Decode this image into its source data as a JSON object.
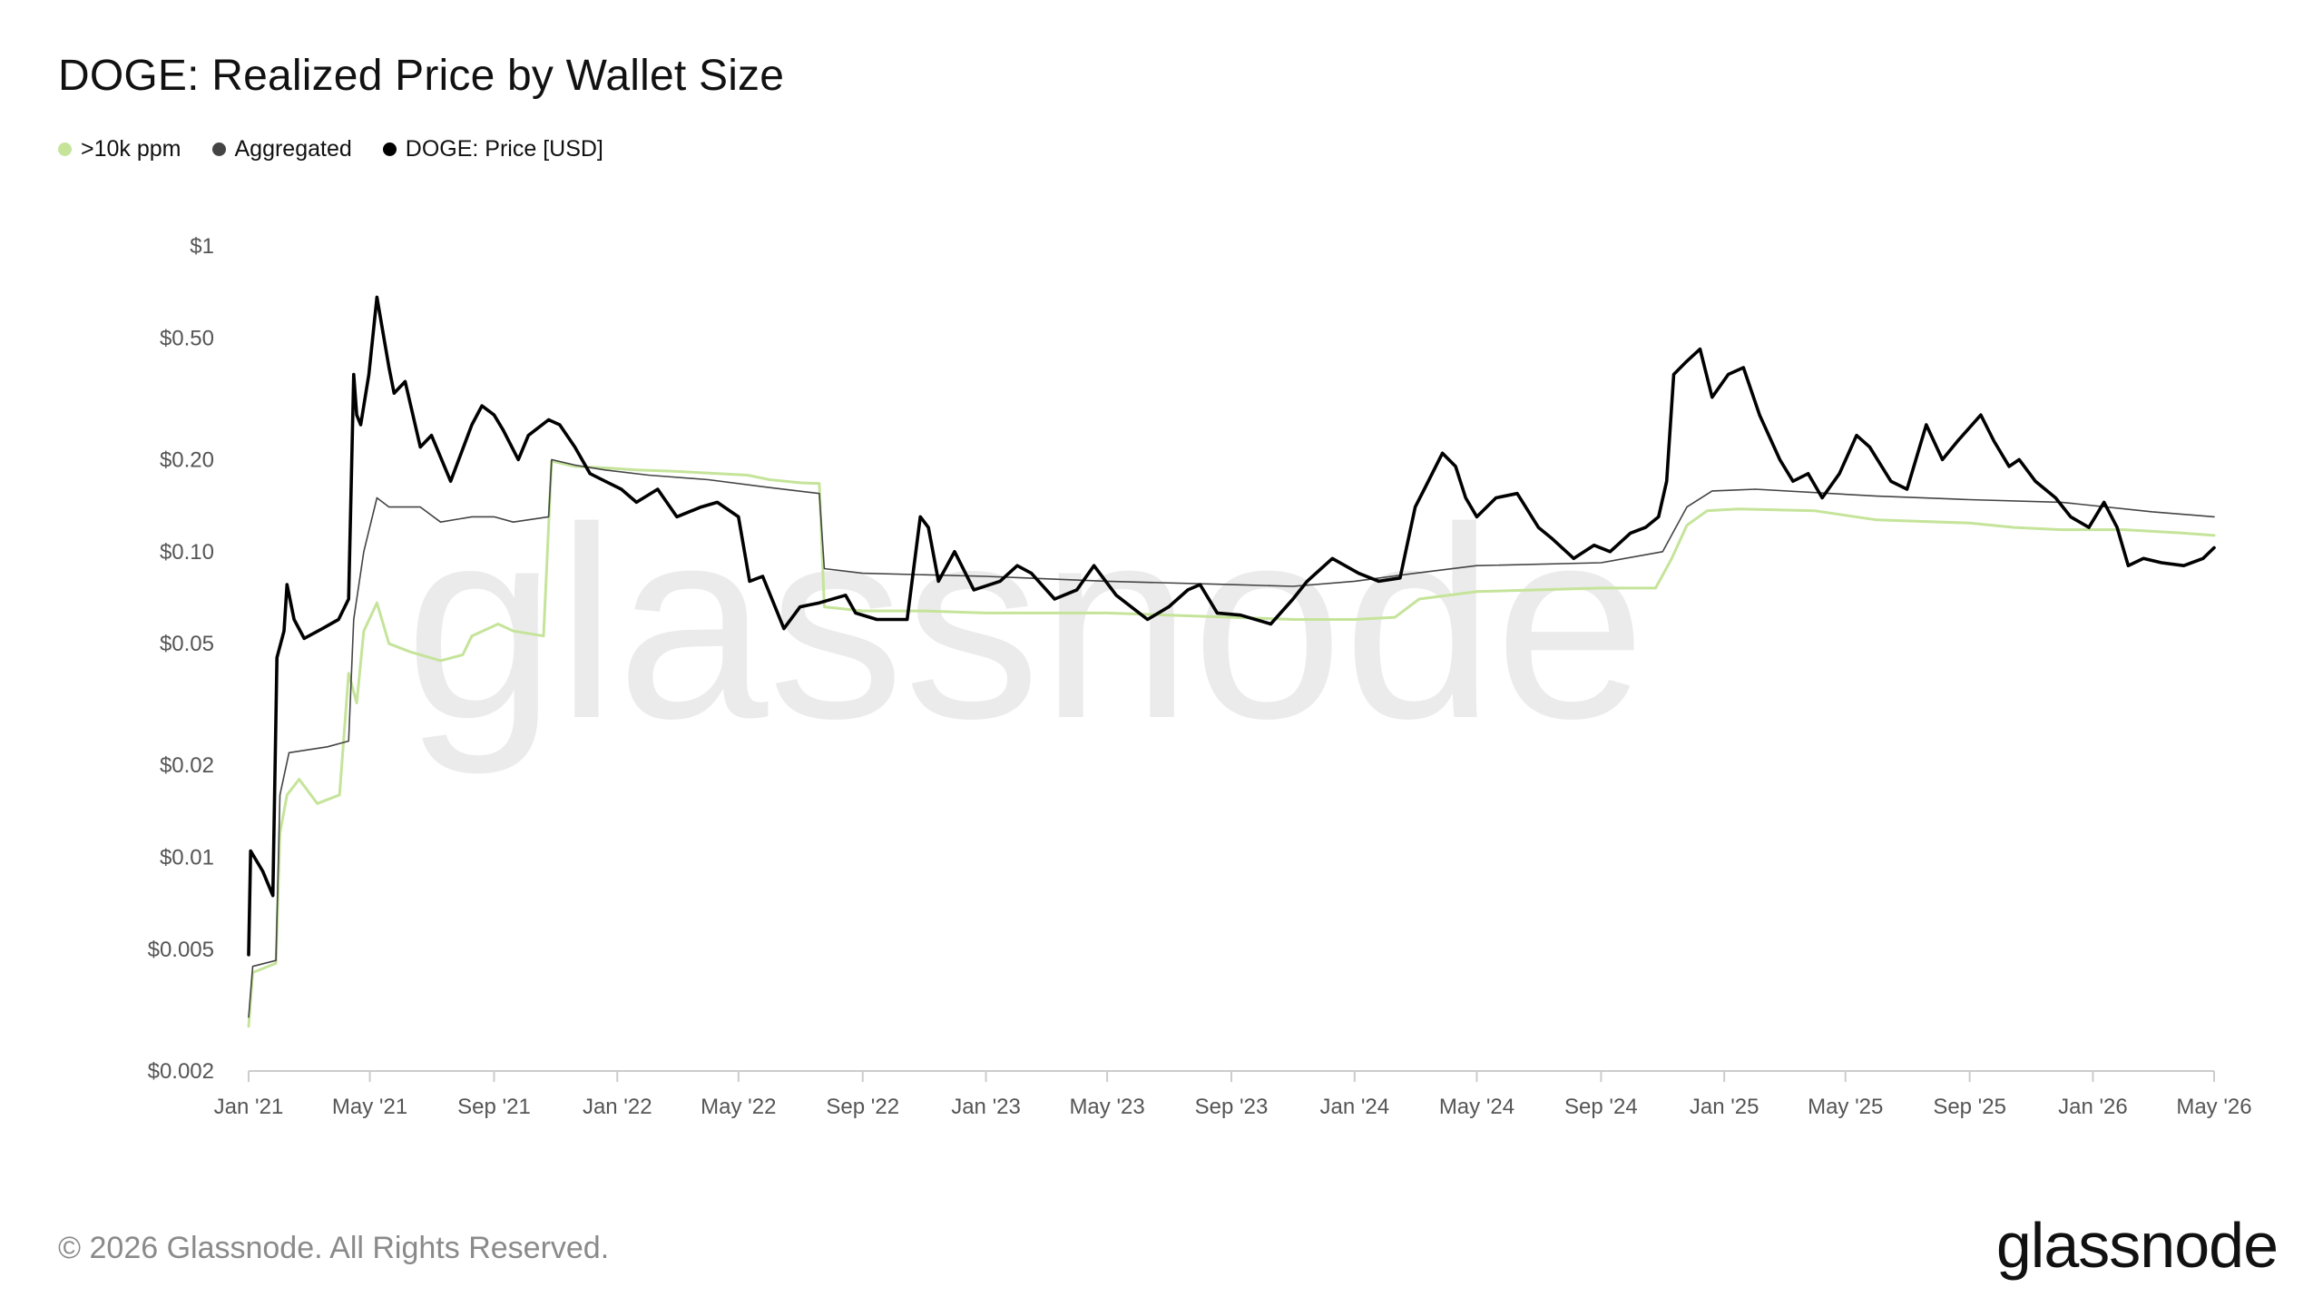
{
  "title": "DOGE: Realized Price by Wallet Size",
  "legend": [
    {
      "label": ">10k ppm",
      "color": "#c5e49a"
    },
    {
      "label": "Aggregated",
      "color": "#444444"
    },
    {
      "label": "DOGE: Price [USD]",
      "color": "#000000"
    }
  ],
  "watermark": "glassnode",
  "footer": "© 2026 Glassnode. All Rights Reserved.",
  "brand": "glassnode",
  "chart_data": {
    "type": "line",
    "y_scale": "log",
    "ylim": [
      0.002,
      1
    ],
    "xlim": [
      "2021-01-01",
      "2026-05-01"
    ],
    "y_ticks": [
      {
        "value": 1,
        "label": "$1"
      },
      {
        "value": 0.5,
        "label": "$0.50"
      },
      {
        "value": 0.2,
        "label": "$0.20"
      },
      {
        "value": 0.1,
        "label": "$0.10"
      },
      {
        "value": 0.05,
        "label": "$0.05"
      },
      {
        "value": 0.02,
        "label": "$0.02"
      },
      {
        "value": 0.01,
        "label": "$0.01"
      },
      {
        "value": 0.005,
        "label": "$0.005"
      },
      {
        "value": 0.002,
        "label": "$0.002"
      }
    ],
    "x_ticks": [
      {
        "date": "2021-01-01",
        "label": "Jan '21"
      },
      {
        "date": "2021-05-01",
        "label": "May '21"
      },
      {
        "date": "2021-09-01",
        "label": "Sep '21"
      },
      {
        "date": "2022-01-01",
        "label": "Jan '22"
      },
      {
        "date": "2022-05-01",
        "label": "May '22"
      },
      {
        "date": "2022-09-01",
        "label": "Sep '22"
      },
      {
        "date": "2023-01-01",
        "label": "Jan '23"
      },
      {
        "date": "2023-05-01",
        "label": "May '23"
      },
      {
        "date": "2023-09-01",
        "label": "Sep '23"
      },
      {
        "date": "2024-01-01",
        "label": "Jan '24"
      },
      {
        "date": "2024-05-01",
        "label": "May '24"
      },
      {
        "date": "2024-09-01",
        "label": "Sep '24"
      },
      {
        "date": "2025-01-01",
        "label": "Jan '25"
      },
      {
        "date": "2025-05-01",
        "label": "May '25"
      },
      {
        "date": "2025-09-01",
        "label": "Sep '25"
      },
      {
        "date": "2026-01-01",
        "label": "Jan '26"
      },
      {
        "date": "2026-05-01",
        "label": "May '26"
      }
    ],
    "series": [
      {
        "name": ">10k ppm",
        "color": "#c5e49a",
        "points": [
          [
            "2021-01-01",
            0.0028
          ],
          [
            "2021-01-05",
            0.0042
          ],
          [
            "2021-01-28",
            0.0045
          ],
          [
            "2021-02-01",
            0.012
          ],
          [
            "2021-02-08",
            0.016
          ],
          [
            "2021-02-20",
            0.018
          ],
          [
            "2021-03-10",
            0.015
          ],
          [
            "2021-04-01",
            0.016
          ],
          [
            "2021-04-10",
            0.04
          ],
          [
            "2021-04-18",
            0.032
          ],
          [
            "2021-04-25",
            0.055
          ],
          [
            "2021-05-08",
            0.068
          ],
          [
            "2021-05-20",
            0.05
          ],
          [
            "2021-06-10",
            0.047
          ],
          [
            "2021-07-10",
            0.044
          ],
          [
            "2021-08-01",
            0.046
          ],
          [
            "2021-08-10",
            0.053
          ],
          [
            "2021-09-05",
            0.058
          ],
          [
            "2021-09-20",
            0.055
          ],
          [
            "2021-10-20",
            0.053
          ],
          [
            "2021-10-28",
            0.198
          ],
          [
            "2021-11-20",
            0.19
          ],
          [
            "2021-12-20",
            0.188
          ],
          [
            "2022-01-20",
            0.185
          ],
          [
            "2022-03-01",
            0.183
          ],
          [
            "2022-05-10",
            0.178
          ],
          [
            "2022-06-01",
            0.172
          ],
          [
            "2022-07-01",
            0.168
          ],
          [
            "2022-07-20",
            0.167
          ],
          [
            "2022-07-25",
            0.066
          ],
          [
            "2022-09-01",
            0.064
          ],
          [
            "2022-11-01",
            0.064
          ],
          [
            "2023-01-01",
            0.063
          ],
          [
            "2023-05-01",
            0.063
          ],
          [
            "2023-09-01",
            0.061
          ],
          [
            "2023-11-01",
            0.06
          ],
          [
            "2024-01-01",
            0.06
          ],
          [
            "2024-02-10",
            0.061
          ],
          [
            "2024-03-05",
            0.07
          ],
          [
            "2024-05-01",
            0.074
          ],
          [
            "2024-09-01",
            0.076
          ],
          [
            "2024-10-25",
            0.076
          ],
          [
            "2024-11-10",
            0.095
          ],
          [
            "2024-11-25",
            0.122
          ],
          [
            "2024-12-15",
            0.136
          ],
          [
            "2025-01-15",
            0.138
          ],
          [
            "2025-04-01",
            0.136
          ],
          [
            "2025-06-01",
            0.127
          ],
          [
            "2025-09-01",
            0.124
          ],
          [
            "2025-10-15",
            0.12
          ],
          [
            "2025-12-01",
            0.118
          ],
          [
            "2026-02-01",
            0.118
          ],
          [
            "2026-04-01",
            0.115
          ],
          [
            "2026-05-01",
            0.113
          ]
        ]
      },
      {
        "name": "Aggregated",
        "color": "#444444",
        "points": [
          [
            "2021-01-01",
            0.003
          ],
          [
            "2021-01-05",
            0.0044
          ],
          [
            "2021-01-28",
            0.0046
          ],
          [
            "2021-02-01",
            0.016
          ],
          [
            "2021-02-10",
            0.022
          ],
          [
            "2021-03-20",
            0.023
          ],
          [
            "2021-04-10",
            0.024
          ],
          [
            "2021-04-15",
            0.06
          ],
          [
            "2021-04-25",
            0.1
          ],
          [
            "2021-05-08",
            0.15
          ],
          [
            "2021-05-20",
            0.14
          ],
          [
            "2021-06-20",
            0.14
          ],
          [
            "2021-07-10",
            0.125
          ],
          [
            "2021-08-10",
            0.13
          ],
          [
            "2021-09-01",
            0.13
          ],
          [
            "2021-09-20",
            0.125
          ],
          [
            "2021-10-25",
            0.13
          ],
          [
            "2021-10-28",
            0.2
          ],
          [
            "2021-11-20",
            0.192
          ],
          [
            "2021-12-20",
            0.185
          ],
          [
            "2022-02-01",
            0.178
          ],
          [
            "2022-04-01",
            0.172
          ],
          [
            "2022-06-01",
            0.162
          ],
          [
            "2022-07-20",
            0.155
          ],
          [
            "2022-07-25",
            0.088
          ],
          [
            "2022-09-01",
            0.085
          ],
          [
            "2023-01-01",
            0.083
          ],
          [
            "2023-05-01",
            0.08
          ],
          [
            "2023-09-01",
            0.078
          ],
          [
            "2023-11-01",
            0.077
          ],
          [
            "2024-01-01",
            0.08
          ],
          [
            "2024-03-01",
            0.085
          ],
          [
            "2024-05-01",
            0.09
          ],
          [
            "2024-09-01",
            0.092
          ],
          [
            "2024-11-01",
            0.1
          ],
          [
            "2024-11-25",
            0.14
          ],
          [
            "2024-12-20",
            0.158
          ],
          [
            "2025-02-01",
            0.16
          ],
          [
            "2025-06-01",
            0.152
          ],
          [
            "2025-09-01",
            0.148
          ],
          [
            "2025-12-01",
            0.145
          ],
          [
            "2026-03-01",
            0.135
          ],
          [
            "2026-05-01",
            0.13
          ]
        ]
      },
      {
        "name": "DOGE: Price [USD]",
        "color": "#000000",
        "points": [
          [
            "2021-01-01",
            0.0048
          ],
          [
            "2021-01-03",
            0.0105
          ],
          [
            "2021-01-15",
            0.009
          ],
          [
            "2021-01-25",
            0.0075
          ],
          [
            "2021-01-29",
            0.045
          ],
          [
            "2021-02-05",
            0.055
          ],
          [
            "2021-02-08",
            0.078
          ],
          [
            "2021-02-15",
            0.06
          ],
          [
            "2021-02-25",
            0.052
          ],
          [
            "2021-03-15",
            0.056
          ],
          [
            "2021-03-31",
            0.06
          ],
          [
            "2021-04-10",
            0.07
          ],
          [
            "2021-04-15",
            0.38
          ],
          [
            "2021-04-18",
            0.28
          ],
          [
            "2021-04-22",
            0.26
          ],
          [
            "2021-04-30",
            0.38
          ],
          [
            "2021-05-08",
            0.68
          ],
          [
            "2021-05-15",
            0.5
          ],
          [
            "2021-05-20",
            0.4
          ],
          [
            "2021-05-25",
            0.33
          ],
          [
            "2021-06-05",
            0.36
          ],
          [
            "2021-06-20",
            0.22
          ],
          [
            "2021-07-01",
            0.24
          ],
          [
            "2021-07-20",
            0.17
          ],
          [
            "2021-08-10",
            0.26
          ],
          [
            "2021-08-20",
            0.3
          ],
          [
            "2021-09-01",
            0.28
          ],
          [
            "2021-09-10",
            0.25
          ],
          [
            "2021-09-25",
            0.2
          ],
          [
            "2021-10-05",
            0.24
          ],
          [
            "2021-10-25",
            0.27
          ],
          [
            "2021-11-05",
            0.26
          ],
          [
            "2021-11-20",
            0.22
          ],
          [
            "2021-12-05",
            0.18
          ],
          [
            "2021-12-20",
            0.17
          ],
          [
            "2022-01-05",
            0.16
          ],
          [
            "2022-01-20",
            0.145
          ],
          [
            "2022-02-10",
            0.16
          ],
          [
            "2022-03-01",
            0.13
          ],
          [
            "2022-03-25",
            0.14
          ],
          [
            "2022-04-10",
            0.145
          ],
          [
            "2022-05-01",
            0.13
          ],
          [
            "2022-05-12",
            0.08
          ],
          [
            "2022-05-25",
            0.083
          ],
          [
            "2022-06-15",
            0.056
          ],
          [
            "2022-07-01",
            0.066
          ],
          [
            "2022-07-20",
            0.068
          ],
          [
            "2022-08-15",
            0.072
          ],
          [
            "2022-08-25",
            0.063
          ],
          [
            "2022-09-15",
            0.06
          ],
          [
            "2022-10-15",
            0.06
          ],
          [
            "2022-10-28",
            0.13
          ],
          [
            "2022-11-05",
            0.12
          ],
          [
            "2022-11-15",
            0.08
          ],
          [
            "2022-12-01",
            0.1
          ],
          [
            "2022-12-20",
            0.075
          ],
          [
            "2023-01-15",
            0.08
          ],
          [
            "2023-02-01",
            0.09
          ],
          [
            "2023-02-15",
            0.085
          ],
          [
            "2023-03-10",
            0.07
          ],
          [
            "2023-04-01",
            0.075
          ],
          [
            "2023-04-18",
            0.09
          ],
          [
            "2023-05-10",
            0.072
          ],
          [
            "2023-06-10",
            0.06
          ],
          [
            "2023-07-01",
            0.066
          ],
          [
            "2023-07-20",
            0.075
          ],
          [
            "2023-08-01",
            0.078
          ],
          [
            "2023-08-18",
            0.063
          ],
          [
            "2023-09-10",
            0.062
          ],
          [
            "2023-10-10",
            0.058
          ],
          [
            "2023-11-01",
            0.07
          ],
          [
            "2023-11-15",
            0.08
          ],
          [
            "2023-12-10",
            0.095
          ],
          [
            "2024-01-05",
            0.085
          ],
          [
            "2024-01-25",
            0.08
          ],
          [
            "2024-02-15",
            0.082
          ],
          [
            "2024-03-01",
            0.14
          ],
          [
            "2024-03-10",
            0.16
          ],
          [
            "2024-03-28",
            0.21
          ],
          [
            "2024-04-10",
            0.19
          ],
          [
            "2024-04-20",
            0.15
          ],
          [
            "2024-05-01",
            0.13
          ],
          [
            "2024-05-20",
            0.15
          ],
          [
            "2024-06-10",
            0.155
          ],
          [
            "2024-07-01",
            0.12
          ],
          [
            "2024-07-15",
            0.11
          ],
          [
            "2024-08-05",
            0.095
          ],
          [
            "2024-08-25",
            0.105
          ],
          [
            "2024-09-10",
            0.1
          ],
          [
            "2024-09-30",
            0.115
          ],
          [
            "2024-10-15",
            0.12
          ],
          [
            "2024-10-28",
            0.13
          ],
          [
            "2024-11-05",
            0.17
          ],
          [
            "2024-11-12",
            0.38
          ],
          [
            "2024-11-25",
            0.42
          ],
          [
            "2024-12-08",
            0.46
          ],
          [
            "2024-12-20",
            0.32
          ],
          [
            "2025-01-05",
            0.38
          ],
          [
            "2025-01-20",
            0.4
          ],
          [
            "2025-02-05",
            0.28
          ],
          [
            "2025-02-25",
            0.2
          ],
          [
            "2025-03-10",
            0.17
          ],
          [
            "2025-03-25",
            0.18
          ],
          [
            "2025-04-08",
            0.15
          ],
          [
            "2025-04-25",
            0.18
          ],
          [
            "2025-05-12",
            0.24
          ],
          [
            "2025-05-25",
            0.22
          ],
          [
            "2025-06-15",
            0.17
          ],
          [
            "2025-07-01",
            0.16
          ],
          [
            "2025-07-20",
            0.26
          ],
          [
            "2025-08-05",
            0.2
          ],
          [
            "2025-08-20",
            0.23
          ],
          [
            "2025-09-12",
            0.28
          ],
          [
            "2025-09-25",
            0.23
          ],
          [
            "2025-10-10",
            0.19
          ],
          [
            "2025-10-20",
            0.2
          ],
          [
            "2025-11-05",
            0.17
          ],
          [
            "2025-11-25",
            0.15
          ],
          [
            "2025-12-10",
            0.13
          ],
          [
            "2025-12-28",
            0.12
          ],
          [
            "2026-01-12",
            0.145
          ],
          [
            "2026-01-25",
            0.12
          ],
          [
            "2026-02-05",
            0.09
          ],
          [
            "2026-02-20",
            0.095
          ],
          [
            "2026-03-10",
            0.092
          ],
          [
            "2026-04-01",
            0.09
          ],
          [
            "2026-04-20",
            0.095
          ],
          [
            "2026-05-01",
            0.103
          ]
        ]
      }
    ]
  }
}
